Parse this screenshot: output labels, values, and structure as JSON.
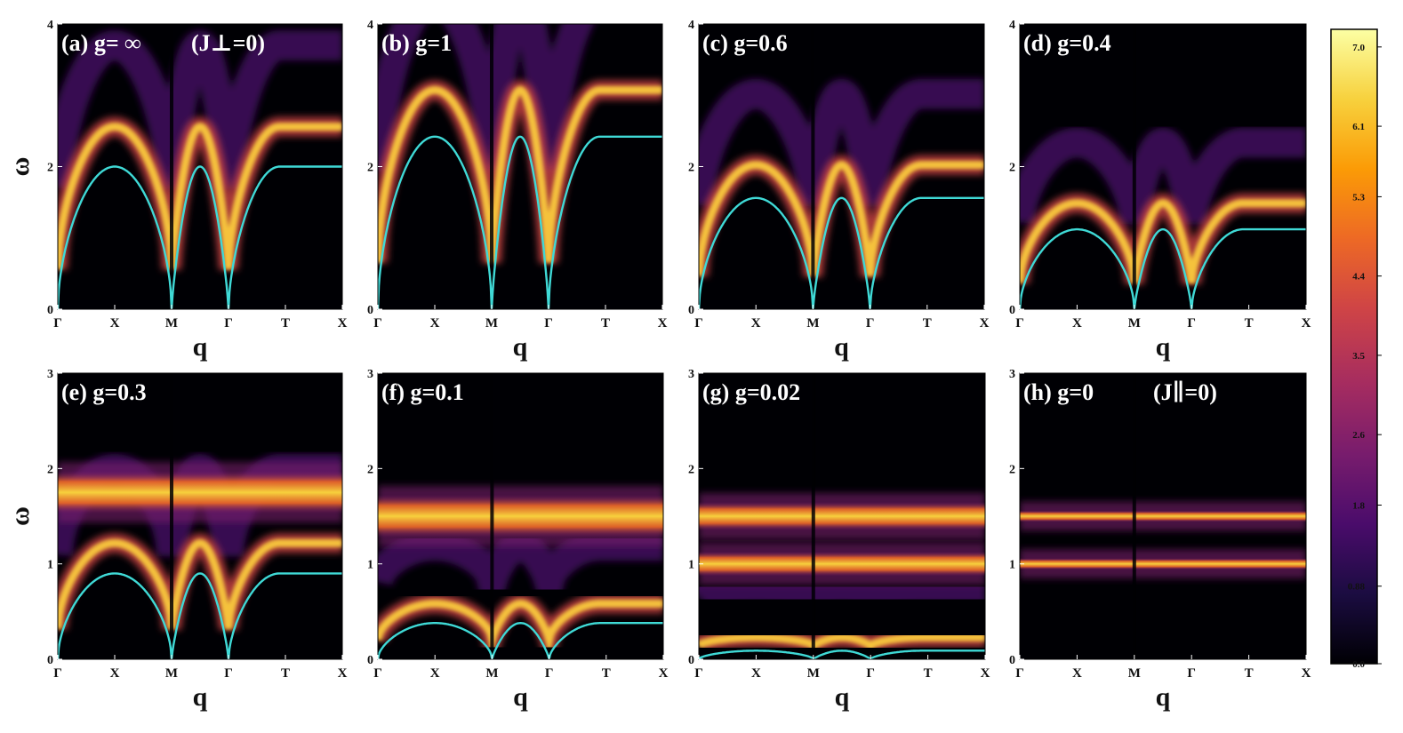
{
  "figure": {
    "xlabel": "q",
    "ylabel": "ω",
    "xtick_labels": [
      "Γ",
      "X",
      "M",
      "Γ",
      "T",
      "X"
    ]
  },
  "colorbar": {
    "tick_labels": [
      "0.0",
      "0.88",
      "1.8",
      "2.6",
      "3.5",
      "4.4",
      "5.3",
      "6.1",
      "7.0"
    ],
    "range": [
      0,
      7.2
    ],
    "colors": [
      "#000004",
      "#1b0c41",
      "#4a0c6b",
      "#781c6d",
      "#a52c60",
      "#cf4446",
      "#ed6925",
      "#fb9b06",
      "#f7d13d",
      "#fcffa4"
    ]
  },
  "chart_data": [
    {
      "type": "heatmap",
      "panel": "a",
      "title": "(a) g= ∞",
      "title_extra": "(J⊥=0)",
      "ylim": [
        0,
        4
      ],
      "yticks": [
        "0",
        "2",
        "4"
      ],
      "dispersion_band_top": 2.0,
      "bands": [],
      "dispersion_color": "#3fd9d6"
    },
    {
      "type": "heatmap",
      "panel": "b",
      "title": "(b) g=1",
      "ylim": [
        0,
        4
      ],
      "yticks": [
        "0",
        "2",
        "4"
      ],
      "dispersion_band_top": 2.42,
      "bands": [],
      "dispersion_color": "#3fd9d6"
    },
    {
      "type": "heatmap",
      "panel": "c",
      "title": "(c) g=0.6",
      "ylim": [
        0,
        4
      ],
      "yticks": [
        "0",
        "2",
        "4"
      ],
      "dispersion_band_top": 1.56,
      "bands": [],
      "dispersion_color": "#3fd9d6"
    },
    {
      "type": "heatmap",
      "panel": "d",
      "title": "(d) g=0.4",
      "ylim": [
        0,
        4
      ],
      "yticks": [
        "0",
        "2",
        "4"
      ],
      "dispersion_band_top": 1.12,
      "bands": [],
      "dispersion_color": "#3fd9d6"
    },
    {
      "type": "heatmap",
      "panel": "e",
      "title": "(e) g=0.3",
      "ylim": [
        0,
        3
      ],
      "yticks": [
        "0",
        "1",
        "2",
        "3"
      ],
      "dispersion_band_top": 0.9,
      "bands": [
        1.75
      ],
      "dispersion_color": "#3fd9d6"
    },
    {
      "type": "heatmap",
      "panel": "f",
      "title": "(f) g=0.1",
      "ylim": [
        0,
        3
      ],
      "yticks": [
        "0",
        "1",
        "2",
        "3"
      ],
      "dispersion_band_top": 0.38,
      "bands": [
        1.5
      ],
      "dispersion_color": "#3fd9d6"
    },
    {
      "type": "heatmap",
      "panel": "g",
      "title": "(g) g=0.02",
      "ylim": [
        0,
        3
      ],
      "yticks": [
        "0",
        "1",
        "2",
        "3"
      ],
      "dispersion_band_top": 0.09,
      "bands": [
        1.5,
        1.0
      ],
      "dispersion_color": "#3fd9d6"
    },
    {
      "type": "heatmap",
      "panel": "h",
      "title": "(h) g=0",
      "title_extra": "(J∥=0)",
      "ylim": [
        0,
        3
      ],
      "yticks": [
        "0",
        "1",
        "2",
        "3"
      ],
      "dispersion_band_top": null,
      "bands": [
        1.5,
        1.0
      ],
      "dispersion_color": "#3fd9d6"
    }
  ]
}
